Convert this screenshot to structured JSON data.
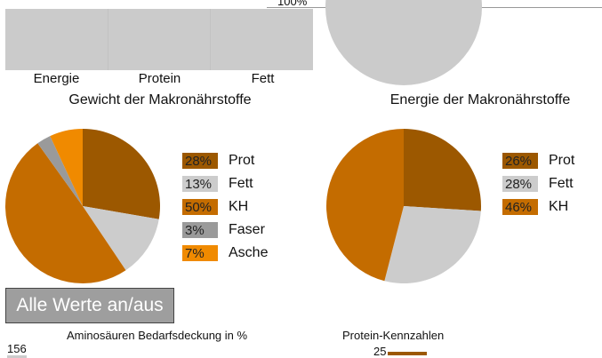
{
  "top": {
    "bar_labels": [
      "Energie",
      "Protein",
      "Fett"
    ],
    "pct_label": "100%"
  },
  "chart_data": [
    {
      "type": "pie",
      "title": "Gewicht der Makronährstoffe",
      "legend": "right",
      "slices": [
        {
          "label": "Prot",
          "value": 28,
          "display": "28%",
          "color": "#9c5800"
        },
        {
          "label": "Fett",
          "value": 13,
          "display": "13%",
          "color": "#cccccc"
        },
        {
          "label": "KH",
          "value": 50,
          "display": "50%",
          "color": "#c46c00"
        },
        {
          "label": "Faser",
          "value": 3,
          "display": "3%",
          "color": "#9a9a9a"
        },
        {
          "label": "Asche",
          "value": 7,
          "display": "7%",
          "color": "#f08a00"
        }
      ]
    },
    {
      "type": "pie",
      "title": "Energie der Makronährstoffe",
      "legend": "right",
      "slices": [
        {
          "label": "Prot",
          "value": 26,
          "display": "26%",
          "color": "#9c5800"
        },
        {
          "label": "Fett",
          "value": 28,
          "display": "28%",
          "color": "#cccccc"
        },
        {
          "label": "KH",
          "value": 46,
          "display": "46%",
          "color": "#c46c00"
        }
      ]
    }
  ],
  "toggle_button": "Alle Werte an/aus",
  "bottom": {
    "amino_title": "Aminosäuren Bedarfsdeckung in %",
    "amino_value": "156",
    "protein_title": "Protein-Kennzahlen",
    "protein_value": "25"
  }
}
